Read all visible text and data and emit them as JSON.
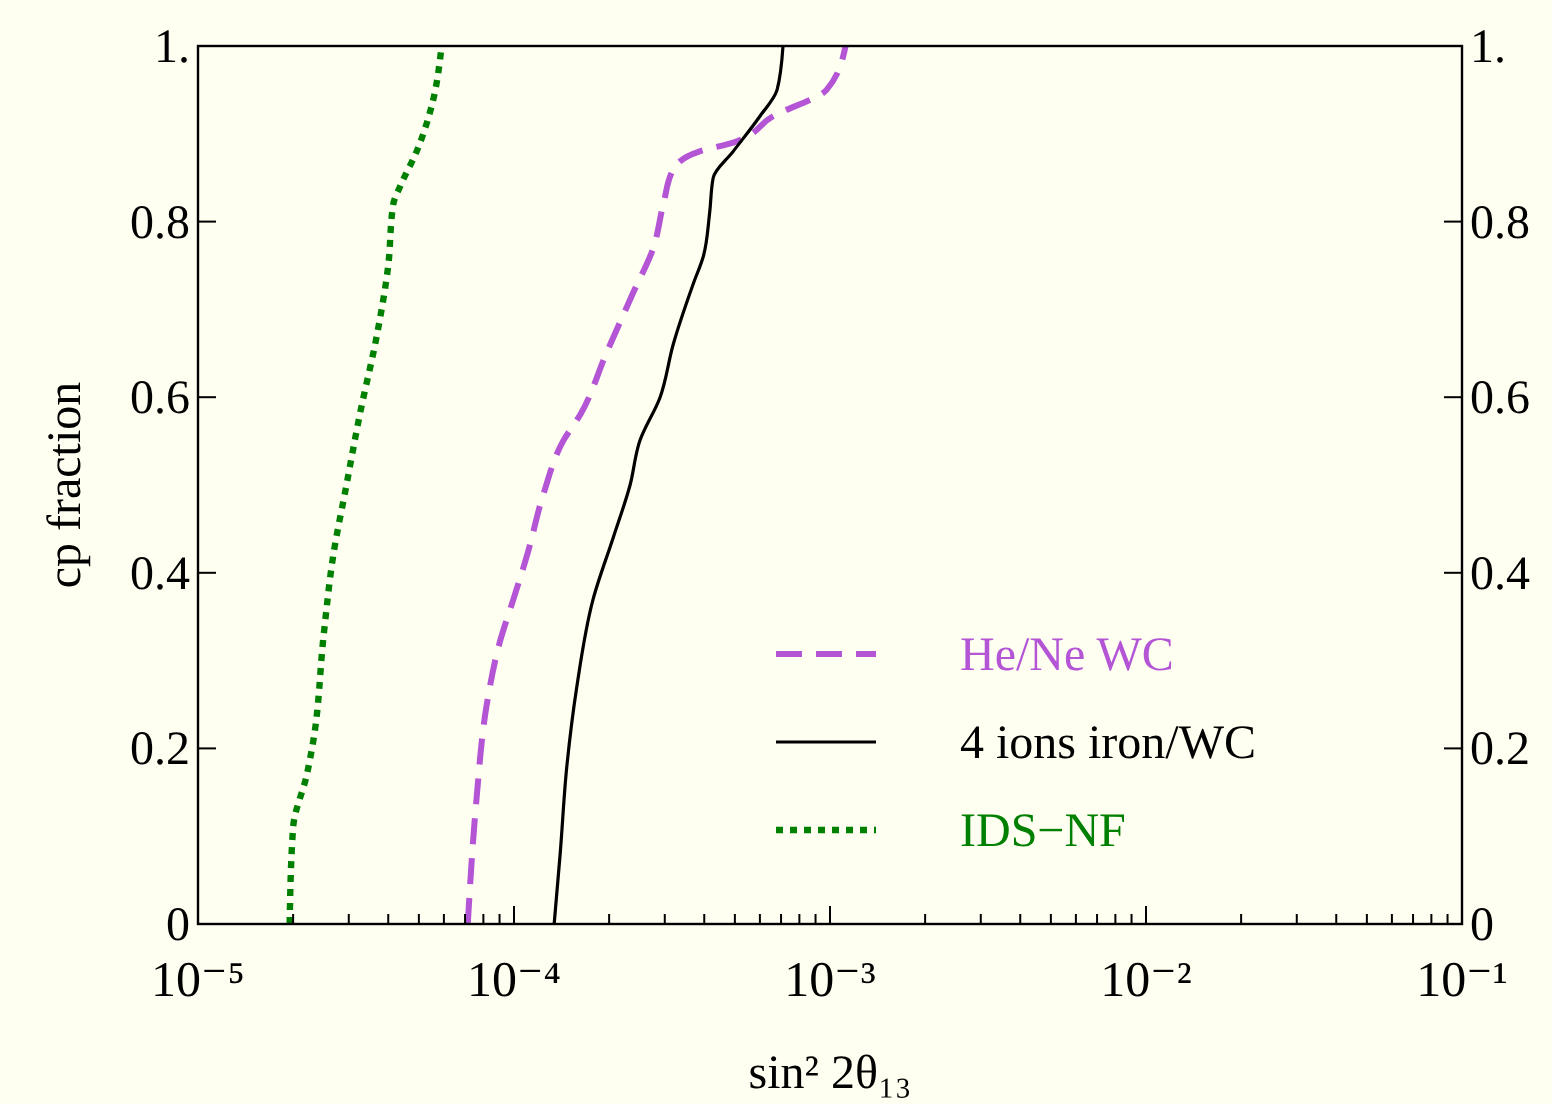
{
  "chart_data": {
    "type": "line",
    "xlabel": "sin² 2θ₁₃",
    "ylabel": "cp fraction",
    "log": "x",
    "grid": false,
    "legend": "bottom right",
    "xlim": [
      1e-05,
      0.1
    ],
    "ylim": [
      0,
      1
    ],
    "y2lim": [
      0,
      1
    ],
    "xticks": [
      {
        "value": 1e-05,
        "label": "10⁻⁵"
      },
      {
        "value": 2e-05,
        "label": null
      },
      {
        "value": 3e-05,
        "label": null
      },
      {
        "value": 4e-05,
        "label": null
      },
      {
        "value": 5e-05,
        "label": null
      },
      {
        "value": 6e-05,
        "label": null
      },
      {
        "value": 7e-05,
        "label": null
      },
      {
        "value": 8e-05,
        "label": null
      },
      {
        "value": 9e-05,
        "label": null
      },
      {
        "value": 0.0001,
        "label": "10⁻⁴"
      },
      {
        "value": 0.0002,
        "label": null
      },
      {
        "value": 0.0003,
        "label": null
      },
      {
        "value": 0.0004,
        "label": null
      },
      {
        "value": 0.0005,
        "label": null
      },
      {
        "value": 0.0006,
        "label": null
      },
      {
        "value": 0.0007,
        "label": null
      },
      {
        "value": 0.0008,
        "label": null
      },
      {
        "value": 0.0009,
        "label": null
      },
      {
        "value": 0.001,
        "label": "10⁻³"
      },
      {
        "value": 0.002,
        "label": null
      },
      {
        "value": 0.003,
        "label": null
      },
      {
        "value": 0.004,
        "label": null
      },
      {
        "value": 0.005,
        "label": null
      },
      {
        "value": 0.006,
        "label": null
      },
      {
        "value": 0.007,
        "label": null
      },
      {
        "value": 0.008,
        "label": null
      },
      {
        "value": 0.009,
        "label": null
      },
      {
        "value": 0.01,
        "label": "10⁻²"
      },
      {
        "value": 0.02,
        "label": null
      },
      {
        "value": 0.03,
        "label": null
      },
      {
        "value": 0.04,
        "label": null
      },
      {
        "value": 0.05,
        "label": null
      },
      {
        "value": 0.06,
        "label": null
      },
      {
        "value": 0.07,
        "label": null
      },
      {
        "value": 0.08,
        "label": null
      },
      {
        "value": 0.09,
        "label": null
      },
      {
        "value": 0.1,
        "label": "10⁻¹"
      }
    ],
    "yticks": [
      0,
      0.2,
      0.4,
      0.6,
      0.8,
      {
        "value": 1,
        "label": "1."
      }
    ],
    "y2ticks": [
      0,
      0.2,
      0.4,
      0.6,
      0.8,
      {
        "value": 1,
        "label": "1."
      }
    ],
    "series": [
      {
        "name": "He/Ne WC",
        "color": "#b455d6",
        "line_style": "dashed",
        "x": [
          7.14e-05,
          7.6e-05,
          8.2e-05,
          9e-05,
          9.96e-05,
          0.00011,
          0.000124,
          0.000143,
          0.000162,
          0.000196,
          0.000239,
          0.000276,
          0.000297,
          0.00032,
          0.000387,
          0.000494,
          0.00066,
          0.000975,
          0.00112
        ],
        "values": [
          0,
          0.14,
          0.25,
          0.32,
          0.37,
          0.42,
          0.49,
          0.55,
          0.58,
          0.65,
          0.72,
          0.77,
          0.82,
          0.86,
          0.88,
          0.89,
          0.92,
          0.95,
          1
        ]
      },
      {
        "name": "4 ions iron/WC",
        "color": "#000000",
        "line_style": "solid",
        "x": [
          0.000134,
          0.00014,
          0.000147,
          0.000158,
          0.000178,
          0.000206,
          0.000233,
          0.00025,
          0.00029,
          0.000319,
          0.00037,
          0.000397,
          0.000416,
          0.000427,
          0.000494,
          0.0006,
          0.00068,
          0.00071
        ],
        "values": [
          0,
          0.08,
          0.18,
          0.27,
          0.37,
          0.44,
          0.5,
          0.55,
          0.6,
          0.66,
          0.73,
          0.76,
          0.81,
          0.85,
          0.88,
          0.92,
          0.95,
          1
        ]
      },
      {
        "name": "IDS−NF",
        "color": "#008000",
        "line_style": "dotted",
        "x": [
          1.95e-05,
          2e-05,
          2.21e-05,
          2.32e-05,
          2.5e-05,
          2.68e-05,
          2.95e-05,
          3.25e-05,
          3.68e-05,
          4e-05,
          4.15e-05,
          4.36e-05,
          4.92e-05,
          5.56e-05,
          5.9e-05
        ],
        "values": [
          0,
          0.11,
          0.17,
          0.21,
          0.33,
          0.42,
          0.5,
          0.58,
          0.67,
          0.75,
          0.82,
          0.84,
          0.88,
          0.94,
          1
        ]
      }
    ]
  }
}
